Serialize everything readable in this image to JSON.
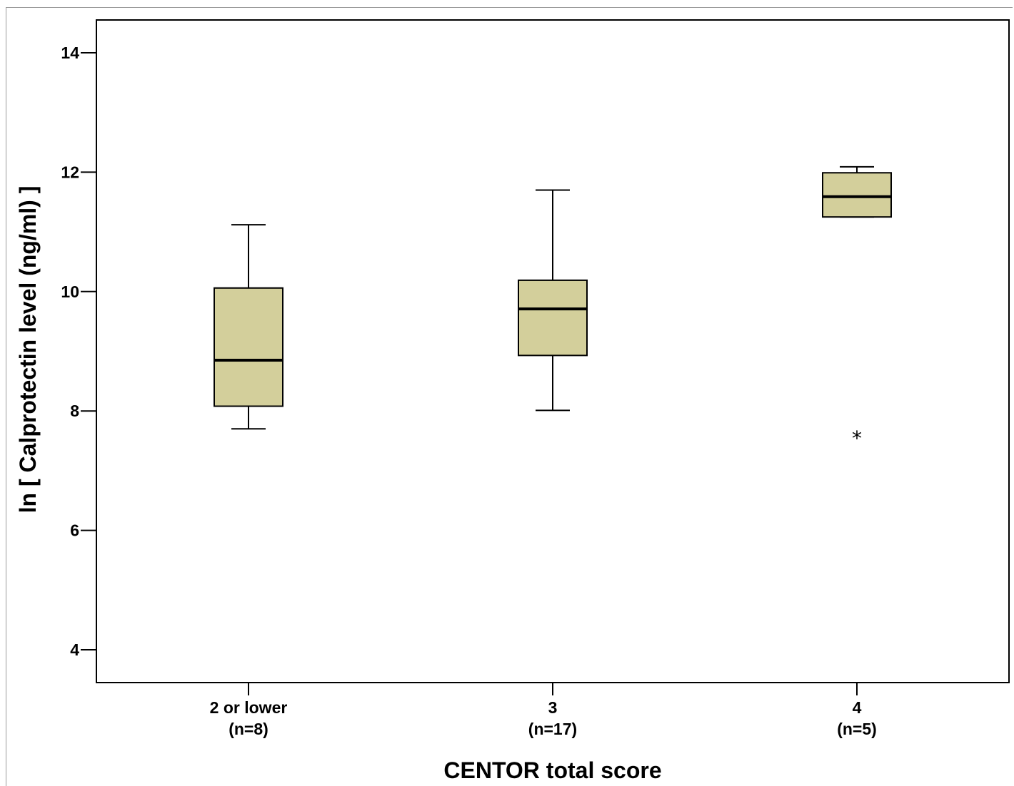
{
  "chart_data": {
    "type": "box",
    "title": "",
    "xlabel": "CENTOR total  score",
    "ylabel": "ln [ Calprotectin level (ng/ml) ]",
    "ylim": [
      3.45,
      14.55
    ],
    "yticks": [
      4,
      6,
      8,
      10,
      12,
      14
    ],
    "categories": [
      {
        "label": "2 or lower",
        "n_label": "(n=8)"
      },
      {
        "label": "3",
        "n_label": "(n=17)"
      },
      {
        "label": "4",
        "n_label": "(n=5)"
      }
    ],
    "boxes": [
      {
        "whisker_low": 7.7,
        "q1": 8.08,
        "median": 8.85,
        "q3": 10.06,
        "whisker_high": 11.12,
        "outliers": []
      },
      {
        "whisker_low": 8.01,
        "q1": 8.93,
        "median": 9.71,
        "q3": 10.19,
        "whisker_high": 11.7,
        "outliers": []
      },
      {
        "whisker_low": 11.25,
        "q1": 11.25,
        "median": 11.59,
        "q3": 11.99,
        "whisker_high": 12.09,
        "outliers": [
          7.62
        ]
      }
    ],
    "outlier_marker": "*",
    "grid": false,
    "legend": "none",
    "colors": {
      "box_fill": "#d3cf9b",
      "stroke": "#000000",
      "frame": "#000000"
    }
  }
}
